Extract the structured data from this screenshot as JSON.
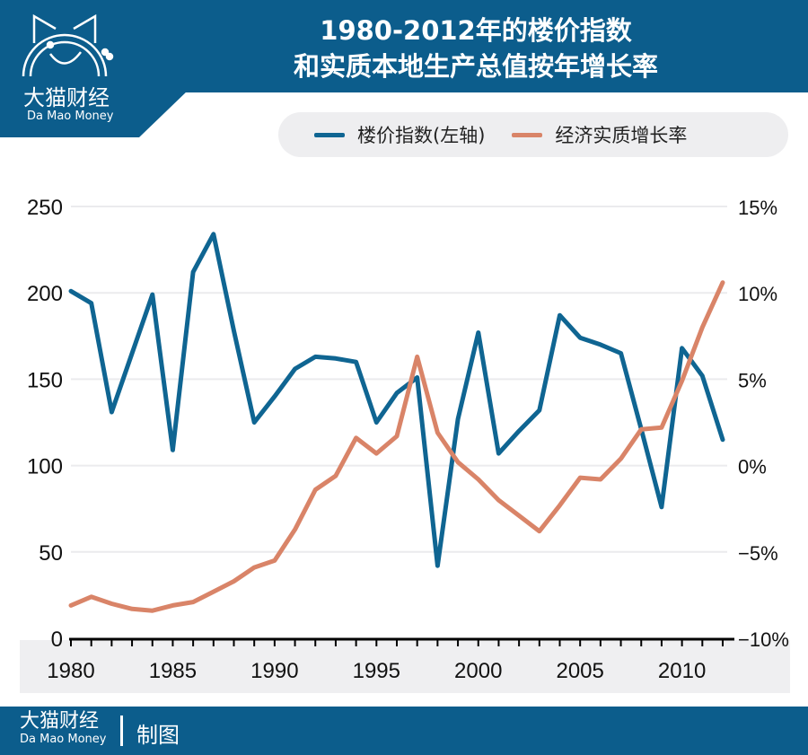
{
  "brand": {
    "name_cn": "大猫财经",
    "name_en": "Da Mao Money",
    "credit": "制图",
    "color": "#0c5d8c"
  },
  "chart_data": {
    "type": "line",
    "title": "1980-2012年的楼价指数\n和实质本地生产总值按年增长率",
    "title_lines": [
      "1980-2012年的楼价指数",
      "和实质本地生产总值按年增长率"
    ],
    "x": [
      1980,
      1981,
      1982,
      1983,
      1984,
      1985,
      1986,
      1987,
      1988,
      1989,
      1990,
      1991,
      1992,
      1993,
      1994,
      1995,
      1996,
      1997,
      1998,
      1999,
      2000,
      2001,
      2002,
      2003,
      2004,
      2005,
      2006,
      2007,
      2008,
      2009,
      2010,
      2011,
      2012
    ],
    "xticks": [
      "1980",
      "1985",
      "1990",
      "1995",
      "2000",
      "2005",
      "2010"
    ],
    "xlim": [
      1980,
      2012
    ],
    "yleft": {
      "ticks": [
        "0",
        "50",
        "100",
        "150",
        "200",
        "250"
      ],
      "ylim": [
        0,
        250
      ]
    },
    "yright": {
      "ticks": [
        "−10%",
        "−5%",
        "0%",
        "5%",
        "10%",
        "15%"
      ],
      "ylim": [
        -10,
        15
      ]
    },
    "grid": true,
    "legend_placement": "top-right",
    "series": [
      {
        "name": "楼价指数(左轴)",
        "axis": "left",
        "color": "#0f6592",
        "values": [
          201,
          194,
          131,
          165,
          199,
          109,
          212,
          234,
          178,
          125,
          140,
          156,
          163,
          162,
          160,
          125,
          142,
          151,
          42,
          127,
          177,
          107,
          120,
          132,
          187,
          174,
          170,
          165,
          121,
          76,
          168,
          152,
          115
        ]
      },
      {
        "name": "经济实质增长率",
        "axis": "right",
        "color": "#d98468",
        "values": [
          -8.1,
          -7.6,
          -8.0,
          -8.3,
          -8.4,
          -8.1,
          -7.9,
          -7.3,
          -6.7,
          -5.9,
          -5.5,
          -3.7,
          -1.4,
          -0.6,
          1.6,
          0.7,
          1.7,
          6.3,
          1.9,
          0.2,
          -0.8,
          -2.0,
          -2.9,
          -3.8,
          -2.3,
          -0.7,
          -0.8,
          0.4,
          2.1,
          2.2,
          4.9,
          8.0,
          10.6
        ]
      }
    ]
  }
}
